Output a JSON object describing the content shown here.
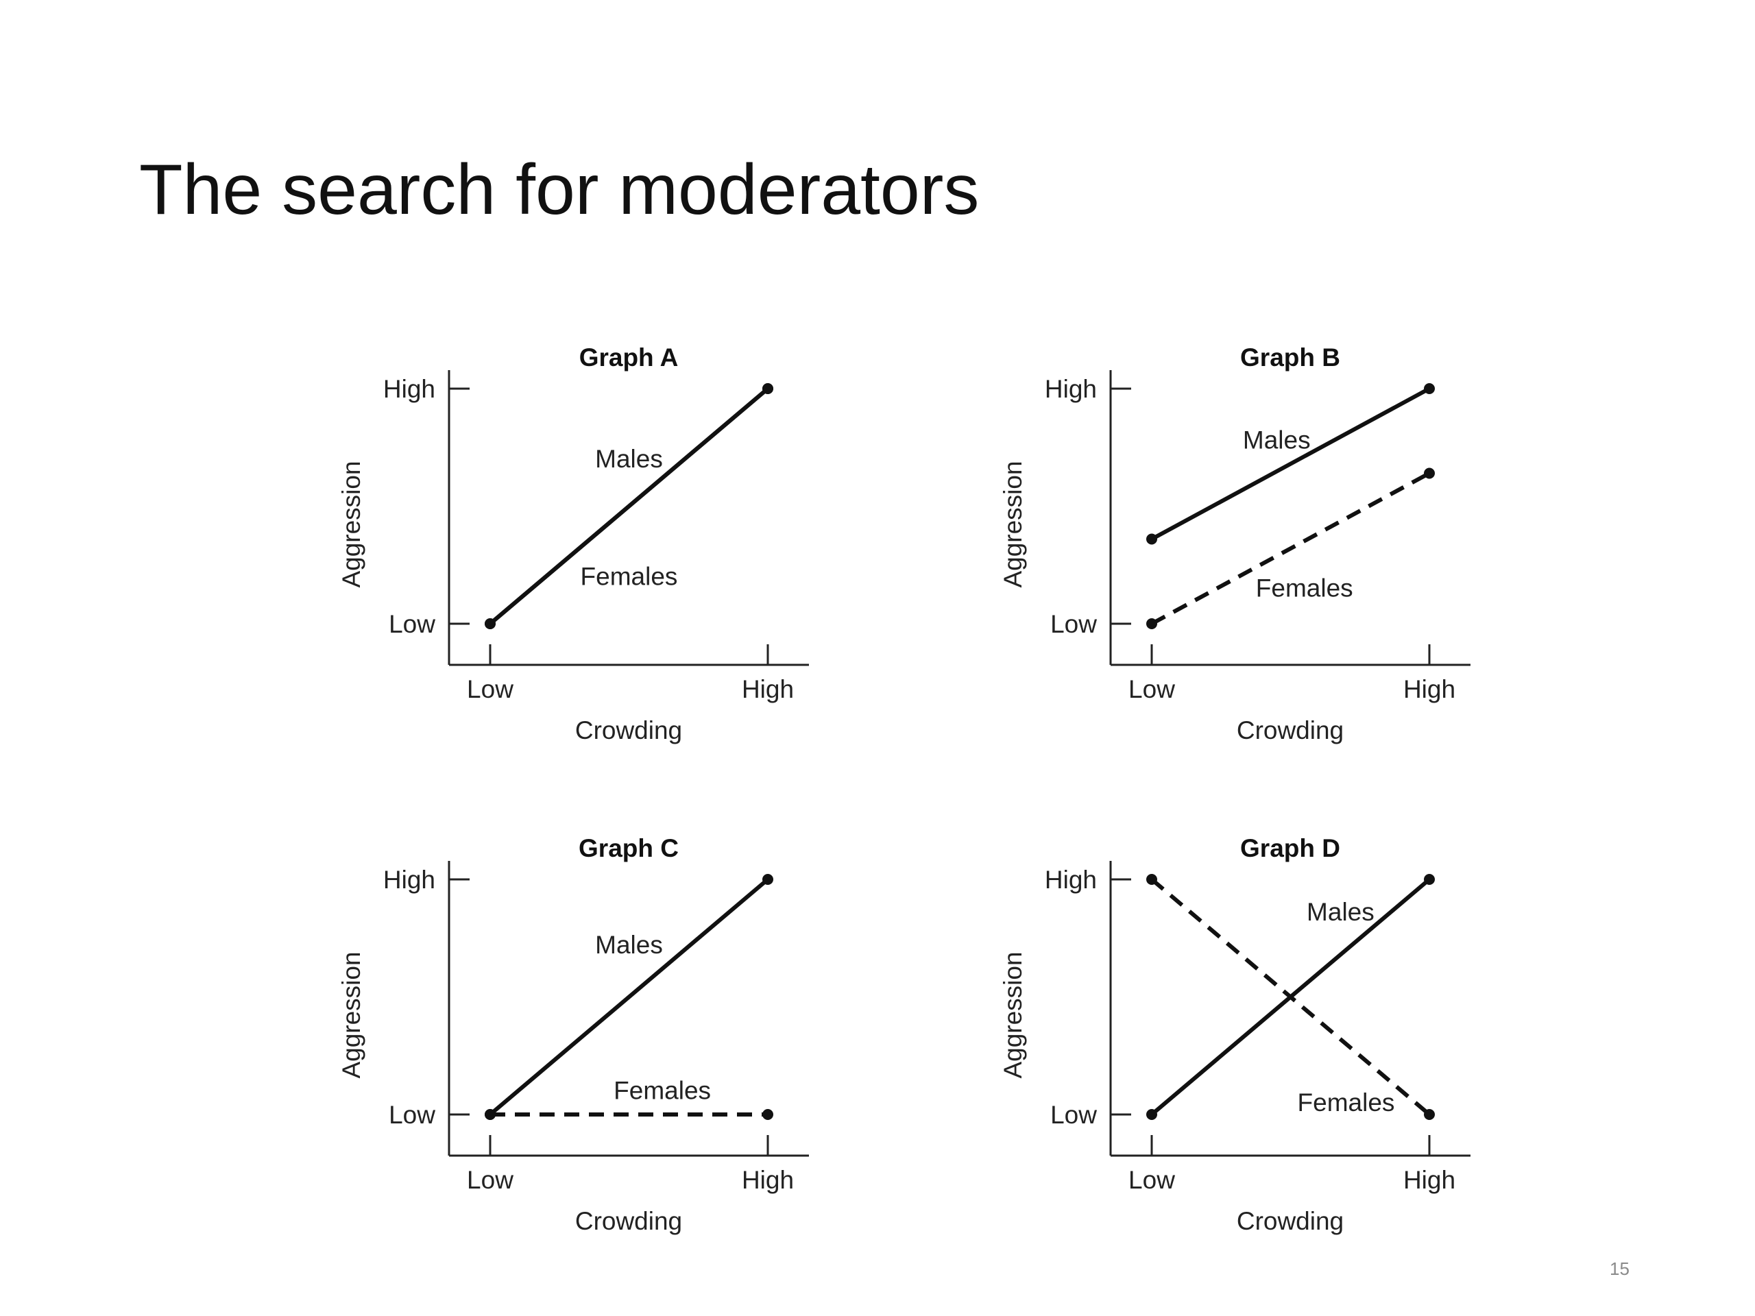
{
  "slide": {
    "title": "The search for moderators",
    "page_number": "15"
  },
  "colors": {
    "line": "#111111",
    "axis": "#222222"
  },
  "chart_data": [
    {
      "type": "line",
      "title": "Graph A",
      "xlabel": "Crowding",
      "ylabel": "Aggression",
      "x": [
        "Low",
        "High"
      ],
      "yticks": [
        "Low",
        "High"
      ],
      "ylim": [
        0,
        1
      ],
      "grid": false,
      "series": [
        {
          "name": "Males",
          "values": [
            0,
            1
          ],
          "style": "solid"
        },
        {
          "name": "Females",
          "values": [
            0,
            1
          ],
          "style": "solid"
        }
      ],
      "labels": [
        {
          "text": "Males",
          "x": 0.5,
          "y": 0.7
        },
        {
          "text": "Females",
          "x": 0.5,
          "y": 0.2
        }
      ]
    },
    {
      "type": "line",
      "title": "Graph B",
      "xlabel": "Crowding",
      "ylabel": "Aggression",
      "x": [
        "Low",
        "High"
      ],
      "yticks": [
        "Low",
        "High"
      ],
      "ylim": [
        0,
        1
      ],
      "grid": false,
      "series": [
        {
          "name": "Males",
          "values": [
            0.36,
            1
          ],
          "style": "solid"
        },
        {
          "name": "Females",
          "values": [
            0,
            0.64
          ],
          "style": "dashed"
        }
      ],
      "labels": [
        {
          "text": "Males",
          "x": 0.45,
          "y": 0.78
        },
        {
          "text": "Females",
          "x": 0.55,
          "y": 0.15
        }
      ]
    },
    {
      "type": "line",
      "title": "Graph C",
      "xlabel": "Crowding",
      "ylabel": "Aggression",
      "x": [
        "Low",
        "High"
      ],
      "yticks": [
        "Low",
        "High"
      ],
      "ylim": [
        0,
        1
      ],
      "grid": false,
      "series": [
        {
          "name": "Males",
          "values": [
            0,
            1
          ],
          "style": "solid"
        },
        {
          "name": "Females",
          "values": [
            0,
            0
          ],
          "style": "dashed"
        }
      ],
      "labels": [
        {
          "text": "Males",
          "x": 0.5,
          "y": 0.72
        },
        {
          "text": "Females",
          "x": 0.62,
          "y": 0.1
        }
      ]
    },
    {
      "type": "line",
      "title": "Graph D",
      "xlabel": "Crowding",
      "ylabel": "Aggression",
      "x": [
        "Low",
        "High"
      ],
      "yticks": [
        "Low",
        "High"
      ],
      "ylim": [
        0,
        1
      ],
      "grid": false,
      "series": [
        {
          "name": "Males",
          "values": [
            0,
            1
          ],
          "style": "solid"
        },
        {
          "name": "Females",
          "values": [
            1,
            0
          ],
          "style": "dashed"
        }
      ],
      "labels": [
        {
          "text": "Males",
          "x": 0.68,
          "y": 0.86
        },
        {
          "text": "Females",
          "x": 0.7,
          "y": 0.05
        }
      ]
    }
  ]
}
